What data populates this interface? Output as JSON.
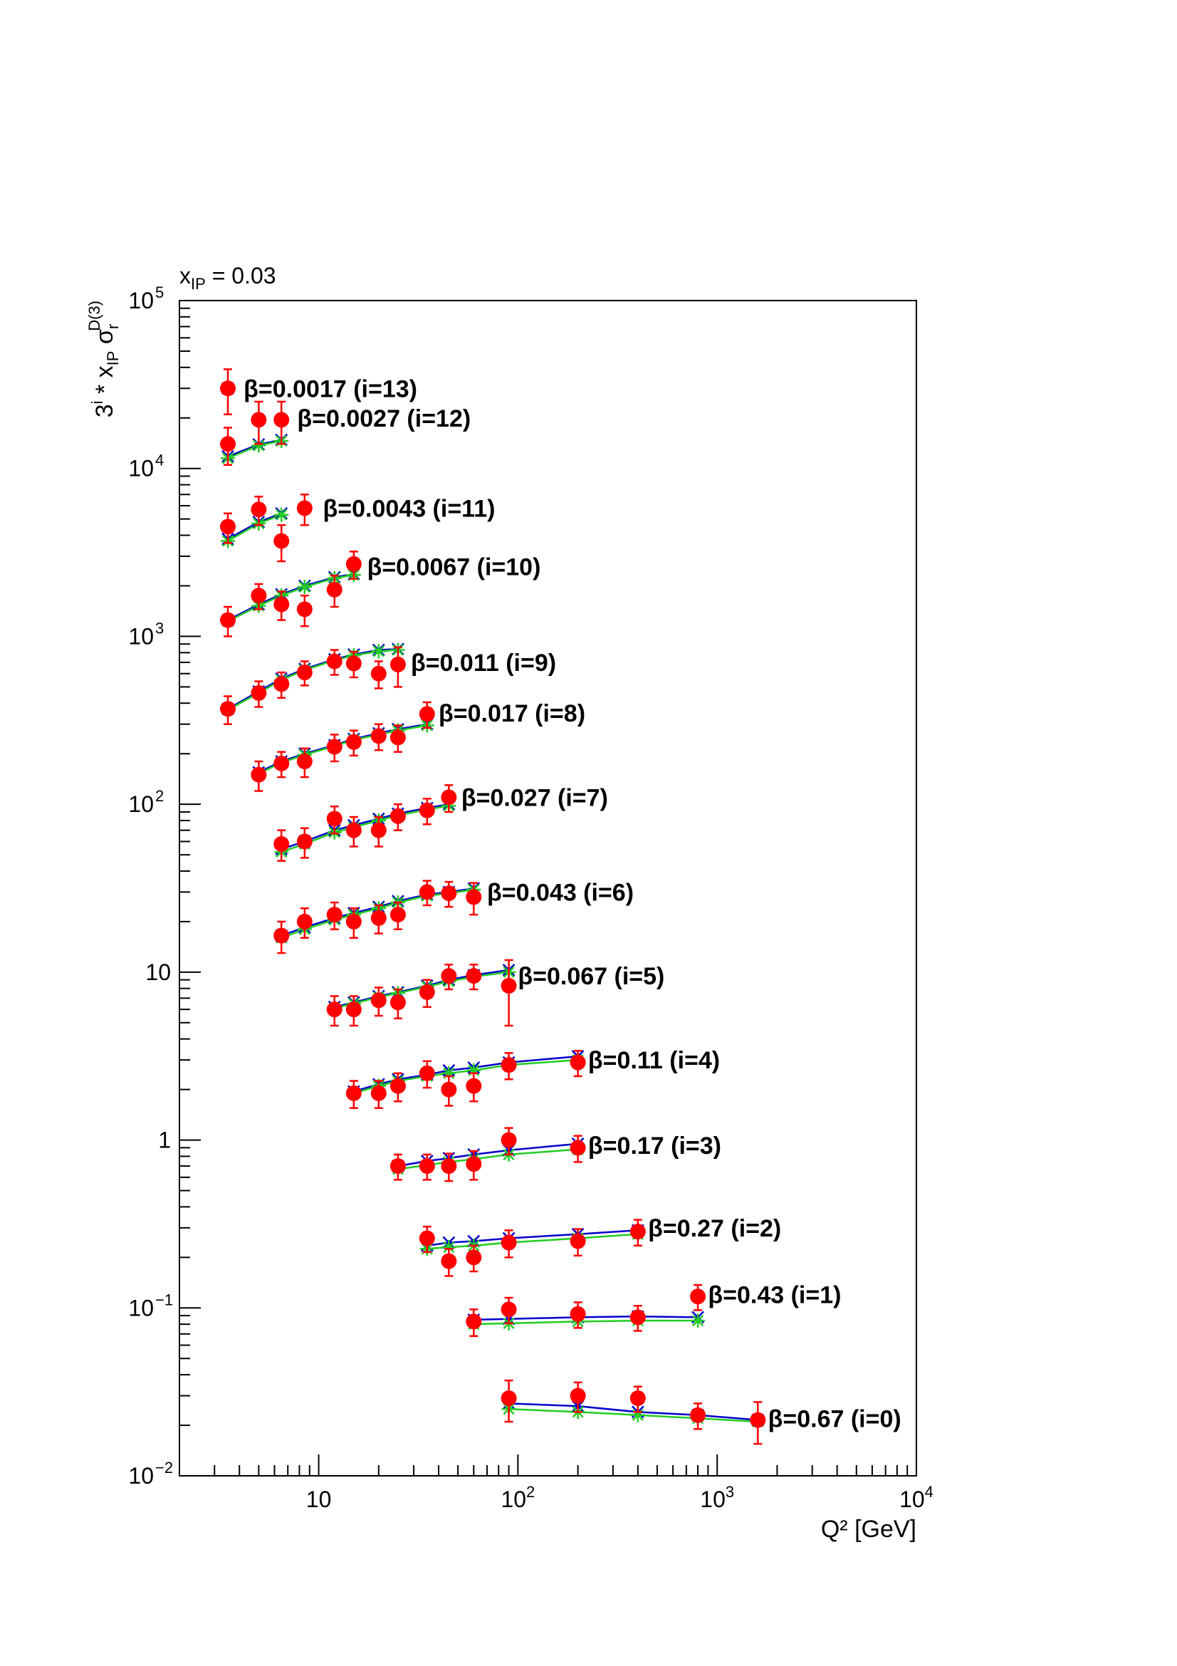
{
  "chart_data": {
    "type": "scatter",
    "title": "x_IP = 0.03",
    "title_main": "x",
    "title_sub": "IP",
    "title_rest": " = 0.03",
    "xlabel": "Q² [GeV]",
    "ylabel": "3^i * x_IP σ_r^D(3)",
    "xscale": "log",
    "yscale": "log",
    "xlim": [
      2,
      10000
    ],
    "ylim": [
      0.01,
      100000
    ],
    "grid": false,
    "legend": "none",
    "x_tick_labels": [
      {
        "value": 10,
        "base": "10",
        "exp": ""
      },
      {
        "value": 100,
        "base": "10",
        "exp": "2"
      },
      {
        "value": 1000,
        "base": "10",
        "exp": "3"
      },
      {
        "value": 10000,
        "base": "10",
        "exp": "4"
      }
    ],
    "y_tick_labels": [
      {
        "value": 0.01,
        "base": "10",
        "exp": "−2"
      },
      {
        "value": 0.1,
        "base": "10",
        "exp": "−1"
      },
      {
        "value": 1,
        "base": "1",
        "exp": ""
      },
      {
        "value": 10,
        "base": "10",
        "exp": ""
      },
      {
        "value": 100,
        "base": "10",
        "exp": "2"
      },
      {
        "value": 1000,
        "base": "10",
        "exp": "3"
      },
      {
        "value": 10000,
        "base": "10",
        "exp": "4"
      },
      {
        "value": 100000,
        "base": "10",
        "exp": "5"
      }
    ],
    "colors": {
      "data": "#ff0000",
      "model_blue": "#0000cc",
      "model_green": "#22cc22",
      "axis": "#000000"
    },
    "series": [
      {
        "label": "β=0.0017 (i=13)",
        "label_q2": 4.2,
        "label_y": 30000,
        "x": [
          3.5
        ],
        "y": [
          30000
        ],
        "err": [
          9000
        ],
        "model_x": [
          3.5
        ],
        "model_blue": [
          30000
        ],
        "model_green": [
          30000
        ]
      },
      {
        "label": "β=0.0027 (i=12)",
        "label_q2": 7.8,
        "label_y": 20000,
        "x": [
          3.5,
          5,
          6.5
        ],
        "y": [
          14000,
          19500,
          19500
        ],
        "err": [
          3500,
          5500,
          5500
        ],
        "model_x": [
          3.5,
          5,
          6.5
        ],
        "model_blue": [
          11800,
          13900,
          14800
        ],
        "model_green": [
          11500,
          13700,
          14600
        ]
      },
      {
        "label": "β=0.0043 (i=11)",
        "label_q2": 10.5,
        "label_y": 5800,
        "x": [
          3.5,
          5,
          6.5,
          8.5
        ],
        "y": [
          4500,
          5700,
          3700,
          5800
        ],
        "err": [
          900,
          1100,
          900,
          1200
        ],
        "model_x": [
          3.5,
          5,
          6.5
        ],
        "model_blue": [
          3800,
          4800,
          5400
        ],
        "model_green": [
          3700,
          4700,
          5300
        ]
      },
      {
        "label": "β=0.0067 (i=10)",
        "label_q2": 17.5,
        "label_y": 2600,
        "x": [
          3.5,
          5,
          6.5,
          8.5,
          12,
          15
        ],
        "y": [
          1250,
          1750,
          1550,
          1450,
          1900,
          2700
        ],
        "err": [
          250,
          300,
          300,
          300,
          400,
          500
        ],
        "model_x": [
          3.5,
          5,
          6.5,
          8.5,
          12,
          15
        ],
        "model_blue": [
          1250,
          1550,
          1780,
          2000,
          2250,
          2350
        ],
        "model_green": [
          1230,
          1520,
          1750,
          1970,
          2220,
          2320
        ]
      },
      {
        "label": "β=0.011 (i=9)",
        "label_q2": 29,
        "label_y": 700,
        "x": [
          3.5,
          5,
          6.5,
          8.5,
          12,
          15,
          20,
          25
        ],
        "y": [
          370,
          460,
          520,
          610,
          710,
          690,
          600,
          680
        ],
        "err": [
          70,
          80,
          90,
          100,
          120,
          120,
          110,
          180
        ],
        "model_x": [
          3.5,
          5,
          6.5,
          8.5,
          12,
          15,
          20,
          25
        ],
        "model_blue": [
          370,
          470,
          560,
          640,
          730,
          780,
          830,
          840
        ],
        "model_green": [
          365,
          460,
          550,
          630,
          720,
          770,
          815,
          830
        ]
      },
      {
        "label": "β=0.017 (i=8)",
        "label_q2": 40,
        "label_y": 350,
        "x": [
          5,
          6.5,
          8.5,
          12,
          15,
          20,
          25,
          35
        ],
        "y": [
          150,
          175,
          180,
          220,
          235,
          255,
          250,
          345
        ],
        "err": [
          30,
          30,
          35,
          40,
          40,
          45,
          45,
          60
        ],
        "model_x": [
          5,
          6.5,
          8.5,
          12,
          15,
          20,
          25,
          35
        ],
        "model_blue": [
          155,
          180,
          200,
          225,
          245,
          265,
          280,
          300
        ],
        "model_green": [
          152,
          177,
          197,
          222,
          242,
          260,
          275,
          295
        ]
      },
      {
        "label": "β=0.027 (i=7)",
        "label_q2": 52,
        "label_y": 110,
        "x": [
          6.5,
          8.5,
          12,
          15,
          20,
          25,
          35,
          45
        ],
        "y": [
          58,
          60,
          82,
          70,
          70,
          85,
          92,
          110
        ],
        "err": [
          12,
          12,
          15,
          14,
          14,
          15,
          16,
          20
        ],
        "model_x": [
          6.5,
          8.5,
          12,
          15,
          20,
          25,
          35,
          45
        ],
        "model_blue": [
          54,
          60,
          70,
          75,
          82,
          88,
          95,
          100
        ],
        "model_green": [
          52,
          58,
          68,
          73,
          80,
          86,
          93,
          98
        ]
      },
      {
        "label": "β=0.043 (i=6)",
        "label_q2": 70,
        "label_y": 30,
        "x": [
          6.5,
          8.5,
          12,
          15,
          20,
          25,
          35,
          45,
          60
        ],
        "y": [
          16.5,
          20,
          22,
          20,
          21,
          22,
          30,
          29.5,
          28
        ],
        "err": [
          3.5,
          4,
          4,
          4,
          4,
          4,
          5,
          5,
          6
        ],
        "model_x": [
          6.5,
          8.5,
          12,
          15,
          20,
          25,
          35,
          45,
          60
        ],
        "model_blue": [
          16.5,
          18.5,
          21,
          22.5,
          24.5,
          26.5,
          29,
          30,
          31.5
        ],
        "model_green": [
          16,
          18,
          20.5,
          22,
          24,
          26,
          28.5,
          29.5,
          31
        ]
      },
      {
        "label": "β=0.067 (i=5)",
        "label_q2": 100,
        "label_y": 9.5,
        "x": [
          12,
          15,
          20,
          25,
          35,
          45,
          60,
          90
        ],
        "y": [
          6,
          6,
          6.8,
          6.6,
          7.6,
          9.5,
          9.5,
          8.3
        ],
        "err": [
          1.2,
          1.2,
          1.3,
          1.3,
          1.4,
          1.6,
          1.6,
          3.5
        ],
        "model_x": [
          12,
          15,
          20,
          25,
          35,
          45,
          60,
          90
        ],
        "model_blue": [
          6.2,
          6.6,
          7.2,
          7.6,
          8.3,
          9,
          9.6,
          10.3
        ],
        "model_green": [
          6.1,
          6.5,
          7.1,
          7.5,
          8.2,
          8.8,
          9.4,
          10
        ]
      },
      {
        "label": "β=0.11 (i=4)",
        "label_q2": 225,
        "label_y": 3.0,
        "x": [
          15,
          20,
          25,
          35,
          45,
          60,
          90,
          200
        ],
        "y": [
          1.9,
          1.9,
          2.1,
          2.5,
          2,
          2.1,
          2.8,
          2.9
        ],
        "err": [
          0.35,
          0.35,
          0.4,
          0.45,
          0.4,
          0.4,
          0.5,
          0.5
        ],
        "model_x": [
          15,
          20,
          25,
          35,
          45,
          60,
          90,
          200
        ],
        "model_blue": [
          1.95,
          2.15,
          2.3,
          2.45,
          2.6,
          2.7,
          2.9,
          3.15
        ],
        "model_green": [
          1.9,
          2.1,
          2.25,
          2.4,
          2.5,
          2.6,
          2.8,
          3.0
        ]
      },
      {
        "label": "β=0.17 (i=3)",
        "label_q2": 225,
        "label_y": 0.93,
        "x": [
          25,
          35,
          45,
          60,
          90,
          200
        ],
        "y": [
          0.7,
          0.7,
          0.7,
          0.72,
          1,
          0.9
        ],
        "err": [
          0.12,
          0.12,
          0.13,
          0.14,
          0.18,
          0.16
        ],
        "model_x": [
          25,
          35,
          45,
          60,
          90,
          200
        ],
        "model_blue": [
          0.7,
          0.75,
          0.78,
          0.82,
          0.87,
          0.95
        ],
        "model_green": [
          0.67,
          0.71,
          0.74,
          0.77,
          0.82,
          0.88
        ]
      },
      {
        "label": "β=0.27 (i=2)",
        "label_q2": 450,
        "label_y": 0.3,
        "x": [
          35,
          45,
          60,
          90,
          200,
          400
        ],
        "y": [
          0.26,
          0.19,
          0.2,
          0.245,
          0.25,
          0.285
        ],
        "err": [
          0.045,
          0.035,
          0.035,
          0.045,
          0.045,
          0.05
        ],
        "model_x": [
          35,
          45,
          60,
          90,
          200,
          400
        ],
        "model_blue": [
          0.235,
          0.245,
          0.25,
          0.26,
          0.275,
          0.29
        ],
        "model_green": [
          0.225,
          0.23,
          0.235,
          0.245,
          0.26,
          0.275
        ]
      },
      {
        "label": "β=0.43 (i=1)",
        "label_q2": 900,
        "label_y": 0.12,
        "x": [
          60,
          90,
          200,
          400,
          800
        ],
        "y": [
          0.083,
          0.098,
          0.092,
          0.088,
          0.117
        ],
        "err": [
          0.015,
          0.017,
          0.016,
          0.015,
          0.02
        ],
        "model_x": [
          60,
          90,
          200,
          400,
          800
        ],
        "model_blue": [
          0.085,
          0.086,
          0.088,
          0.089,
          0.088
        ],
        "model_green": [
          0.08,
          0.081,
          0.083,
          0.084,
          0.084
        ]
      },
      {
        "label": "β=0.67 (i=0)",
        "label_q2": 1800,
        "label_y": 0.022,
        "x": [
          90,
          200,
          400,
          800,
          1600
        ],
        "y": [
          0.029,
          0.03,
          0.029,
          0.023,
          0.0215
        ],
        "err": [
          0.008,
          0.006,
          0.005,
          0.004,
          0.006
        ],
        "model_x": [
          90,
          200,
          400,
          800,
          1600
        ],
        "model_blue": [
          0.027,
          0.026,
          0.024,
          0.023,
          0.0215
        ],
        "model_green": [
          0.025,
          0.024,
          0.023,
          0.022,
          0.021
        ]
      }
    ]
  }
}
